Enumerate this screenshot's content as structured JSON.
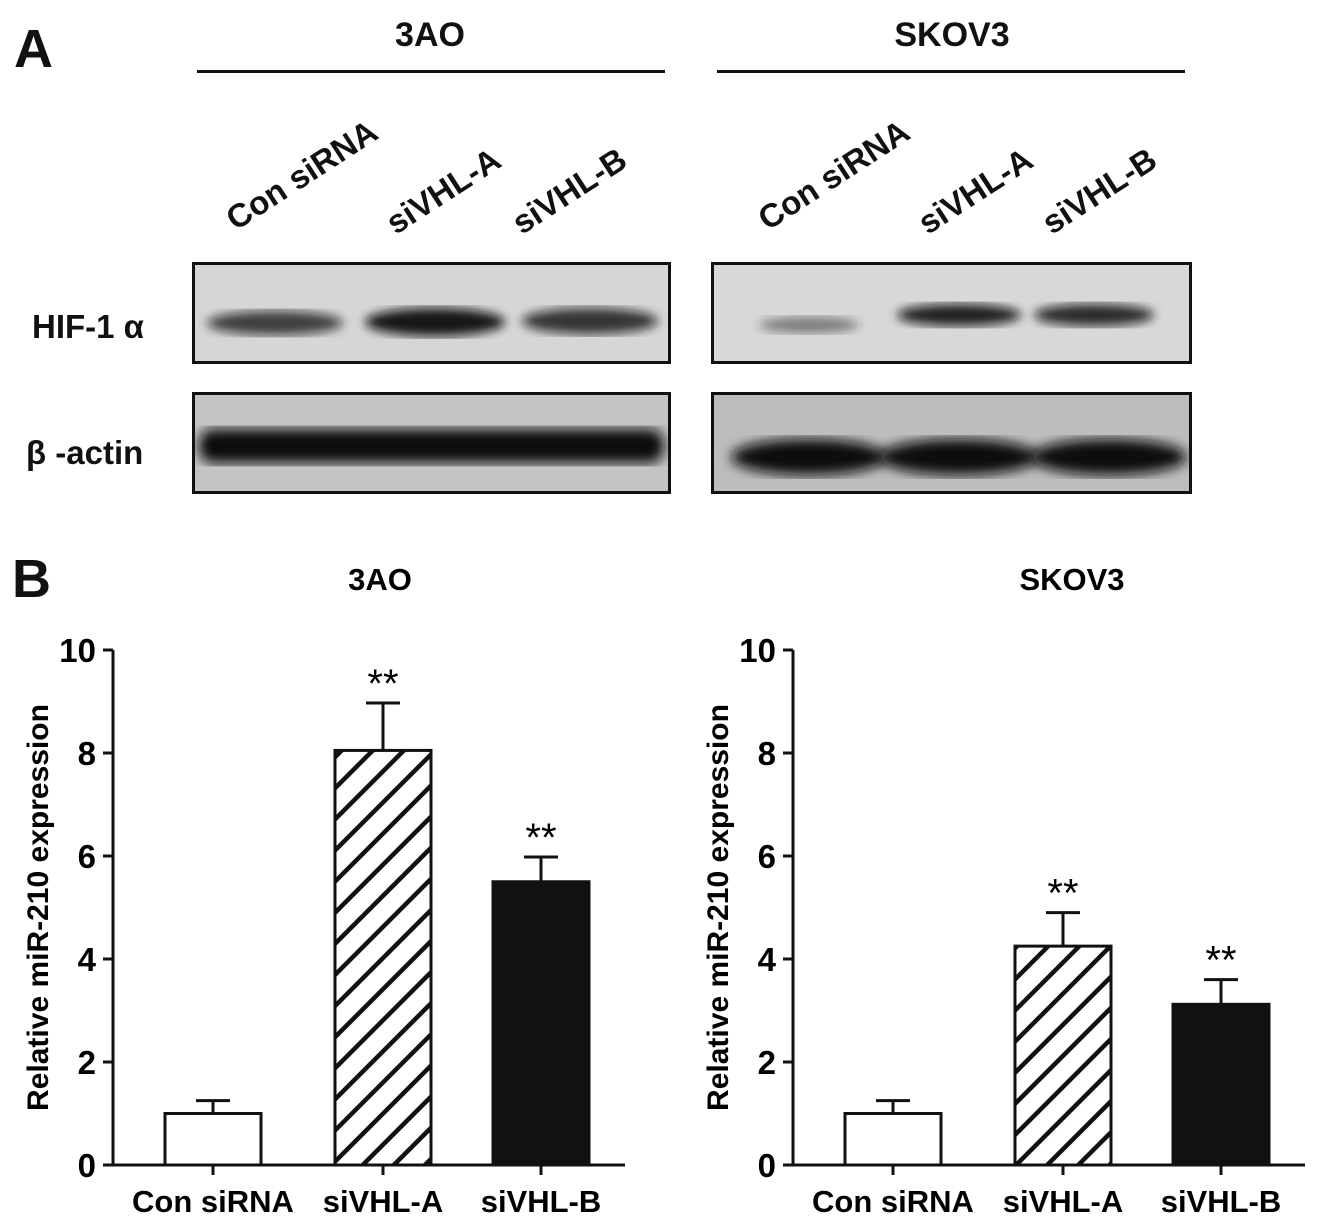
{
  "panel_a": {
    "letter": "A",
    "groups": [
      {
        "title": "3AO",
        "lanes": [
          "Con siRNA",
          "siVHL-A",
          "siVHL-B"
        ]
      },
      {
        "title": "SKOV3",
        "lanes": [
          "Con siRNA",
          "siVHL-A",
          "siVHL-B"
        ]
      }
    ],
    "proteins": [
      "HIF-1 α",
      "β -actin"
    ],
    "band_intensity": {
      "3AO": {
        "HIF-1 α": [
          0.75,
          0.95,
          0.8
        ],
        "β -actin": [
          1.0,
          1.0,
          1.0
        ]
      },
      "SKOV3": {
        "HIF-1 α": [
          0.45,
          0.9,
          0.85
        ],
        "β -actin": [
          0.95,
          0.95,
          0.95
        ]
      }
    }
  },
  "panel_b": {
    "letter": "B"
  },
  "chart_data": [
    {
      "type": "bar",
      "title": "3AO",
      "ylabel": "Relative miR-210 expression",
      "categories": [
        "Con siRNA",
        "siVHL-A",
        "siVHL-B"
      ],
      "values": [
        1.0,
        8.05,
        5.5
      ],
      "errors": [
        0.25,
        0.92,
        0.48
      ],
      "annotations": [
        "",
        "**",
        "**"
      ],
      "fills": [
        "white",
        "hatch",
        "black"
      ],
      "ylim": [
        0,
        10
      ],
      "yticks": [
        "0",
        "2",
        "4",
        "6",
        "8",
        "10"
      ]
    },
    {
      "type": "bar",
      "title": "SKOV3",
      "ylabel": "Relative miR-210 expression",
      "categories": [
        "Con siRNA",
        "siVHL-A",
        "siVHL-B"
      ],
      "values": [
        1.0,
        4.25,
        3.12
      ],
      "errors": [
        0.25,
        0.65,
        0.48
      ],
      "annotations": [
        "",
        "**",
        "**"
      ],
      "fills": [
        "white",
        "hatch",
        "black"
      ],
      "ylim": [
        0,
        10
      ],
      "yticks": [
        "0",
        "2",
        "4",
        "6",
        "8",
        "10"
      ]
    }
  ]
}
